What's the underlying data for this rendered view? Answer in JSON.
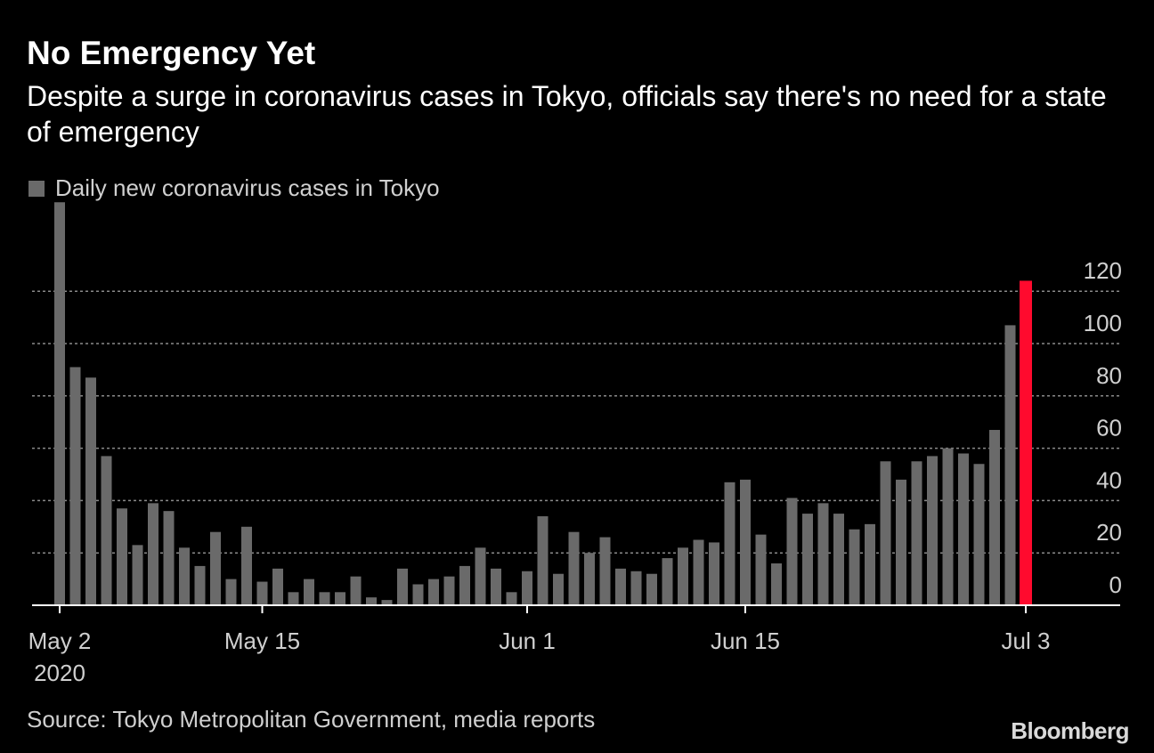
{
  "title": "No Emergency Yet",
  "subtitle": "Despite a surge in coronavirus cases in Tokyo, officials say there's no need for a state of emergency",
  "source": "Source: Tokyo Metropolitan Government, media reports",
  "brand": "Bloomberg",
  "colors": {
    "background": "#000000",
    "bar": "#6a6a6a",
    "highlight": "#ff0a2e",
    "grid": "#8a8a8a",
    "text": "#cfcfcf"
  },
  "chart_data": {
    "type": "bar",
    "title": "No Emergency Yet",
    "legend": "Daily new coronavirus cases in Tokyo",
    "legend_position": "top-left",
    "xlabel": "",
    "ylabel": "",
    "ylim": [
      0,
      120
    ],
    "yticks": [
      0,
      20,
      40,
      60,
      80,
      100,
      120
    ],
    "grid": true,
    "y_axis_side": "right",
    "xticks": [
      {
        "date": "2020-05-02",
        "label": "May 2",
        "sublabel": "2020"
      },
      {
        "date": "2020-05-15",
        "label": "May 15"
      },
      {
        "date": "2020-06-01",
        "label": "Jun 1"
      },
      {
        "date": "2020-06-15",
        "label": "Jun 15"
      },
      {
        "date": "2020-07-03",
        "label": "Jul 3"
      }
    ],
    "start_date": "2020-05-02",
    "highlight_index": 62,
    "values": [
      154,
      91,
      87,
      57,
      37,
      23,
      39,
      36,
      22,
      15,
      28,
      10,
      30,
      9,
      14,
      5,
      10,
      5,
      5,
      11,
      3,
      2,
      14,
      8,
      10,
      11,
      15,
      22,
      14,
      5,
      13,
      34,
      12,
      28,
      20,
      26,
      14,
      13,
      12,
      18,
      22,
      25,
      24,
      47,
      48,
      27,
      16,
      41,
      35,
      39,
      35,
      29,
      31,
      55,
      48,
      55,
      57,
      60,
      58,
      54,
      67,
      107,
      124
    ]
  }
}
